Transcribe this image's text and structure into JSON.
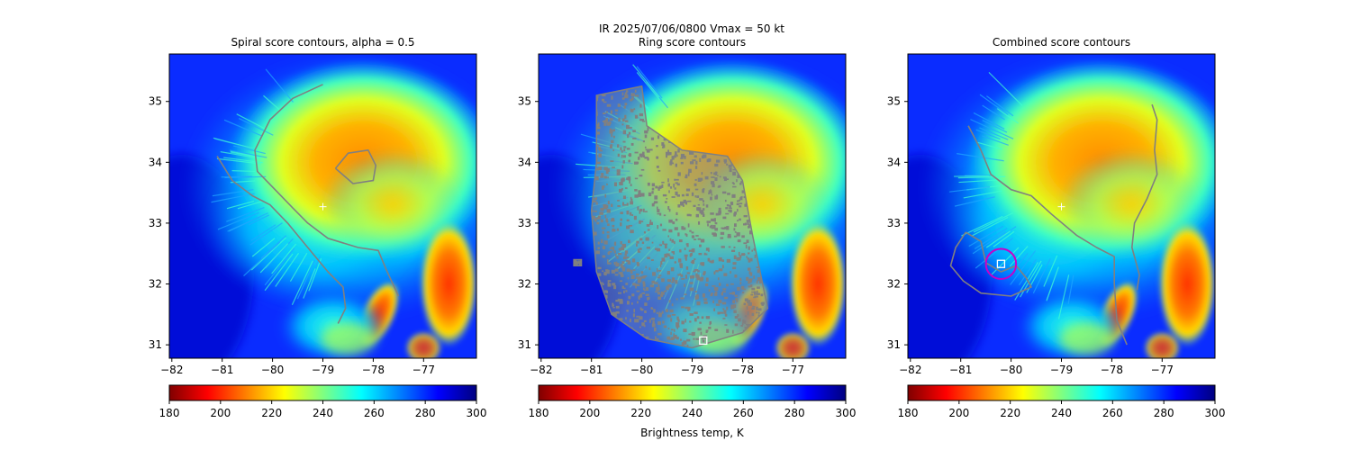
{
  "figure": {
    "suptitle_line1": "IR  2025/07/06/0800    Vmax = 50 kt"
  },
  "colorbar": {
    "label": "Brightness temp, K",
    "ticks": [
      180,
      200,
      220,
      240,
      260,
      280,
      300
    ],
    "range": [
      180,
      300
    ],
    "colormap": "jet_reversed",
    "stops": [
      "#800000",
      "#ff0000",
      "#ff8000",
      "#ffff00",
      "#80ff80",
      "#00ffff",
      "#0080ff",
      "#0000ff",
      "#000080"
    ]
  },
  "chart_data": [
    {
      "type": "heatmap",
      "title": "Spiral score contours, alpha =  0.5",
      "xlabel": "",
      "ylabel": "",
      "xlim": [
        -82.05,
        -75.95
      ],
      "ylim": [
        30.78,
        35.78
      ],
      "xticks": [
        -82,
        -81,
        -80,
        -79,
        -78,
        -77
      ],
      "yticks": [
        31,
        32,
        33,
        34,
        35
      ],
      "contour_color": "#808080",
      "center_marker": {
        "x": -79.0,
        "y": 33.27,
        "symbol": "plus"
      },
      "contours": [
        [
          [
            -79.0,
            35.28
          ],
          [
            -79.6,
            35.05
          ],
          [
            -80.05,
            34.7
          ],
          [
            -80.35,
            34.2
          ],
          [
            -80.3,
            33.85
          ],
          [
            -79.95,
            33.55
          ],
          [
            -79.6,
            33.25
          ],
          [
            -79.3,
            33.0
          ],
          [
            -78.9,
            32.75
          ],
          [
            -78.3,
            32.6
          ],
          [
            -77.9,
            32.55
          ],
          [
            -77.75,
            32.25
          ],
          [
            -77.5,
            31.8
          ]
        ],
        [
          [
            -81.1,
            34.1
          ],
          [
            -80.8,
            33.7
          ],
          [
            -80.4,
            33.45
          ],
          [
            -80.05,
            33.3
          ],
          [
            -79.7,
            33.0
          ],
          [
            -79.35,
            32.65
          ],
          [
            -78.9,
            32.2
          ],
          [
            -78.6,
            31.95
          ],
          [
            -78.55,
            31.6
          ],
          [
            -78.7,
            31.35
          ]
        ],
        [
          [
            -78.75,
            33.9
          ],
          [
            -78.5,
            34.15
          ],
          [
            -78.1,
            34.2
          ],
          [
            -77.95,
            33.95
          ],
          [
            -78.0,
            33.7
          ],
          [
            -78.4,
            33.65
          ],
          [
            -78.75,
            33.9
          ]
        ]
      ]
    },
    {
      "type": "heatmap",
      "title": "Ring score contours",
      "xlabel": "",
      "ylabel": "",
      "xlim": [
        -82.05,
        -75.95
      ],
      "ylim": [
        30.78,
        35.78
      ],
      "xticks": [
        -82,
        -81,
        -80,
        -79,
        -78,
        -77
      ],
      "yticks": [
        31,
        32,
        33,
        34,
        35
      ],
      "contour_color": "#808080",
      "marker_square": {
        "x": -78.78,
        "y": 31.07
      },
      "speckle_regions": [
        [
          [
            -80.9,
            35.1
          ],
          [
            -80.0,
            35.25
          ],
          [
            -79.9,
            34.6
          ],
          [
            -79.2,
            34.2
          ],
          [
            -78.3,
            34.1
          ],
          [
            -78.0,
            33.7
          ],
          [
            -77.8,
            32.8
          ],
          [
            -77.5,
            31.6
          ],
          [
            -78.0,
            31.2
          ],
          [
            -79.0,
            30.95
          ],
          [
            -79.9,
            31.1
          ],
          [
            -80.6,
            31.5
          ],
          [
            -80.9,
            32.2
          ],
          [
            -81.0,
            33.2
          ],
          [
            -80.9,
            34.0
          ]
        ],
        [
          [
            -81.35,
            32.4
          ],
          [
            -81.2,
            32.4
          ],
          [
            -81.2,
            32.3
          ],
          [
            -81.35,
            32.3
          ]
        ]
      ]
    },
    {
      "type": "heatmap",
      "title": "Combined score contours",
      "xlabel": "",
      "ylabel": "",
      "xlim": [
        -82.05,
        -75.95
      ],
      "ylim": [
        30.78,
        35.78
      ],
      "xticks": [
        -82,
        -81,
        -80,
        -79,
        -78,
        -77
      ],
      "yticks": [
        31,
        32,
        33,
        34,
        35
      ],
      "contour_color": "#808080",
      "center_marker": {
        "x": -79.0,
        "y": 33.27,
        "symbol": "plus"
      },
      "ring": {
        "x": -80.2,
        "y": 32.33,
        "radius_deg": 0.3,
        "color": "#c800c8"
      },
      "marker_square": {
        "x": -80.2,
        "y": 32.33
      },
      "contours": [
        [
          [
            -80.85,
            34.6
          ],
          [
            -80.6,
            34.2
          ],
          [
            -80.4,
            33.8
          ],
          [
            -80.0,
            33.55
          ],
          [
            -79.6,
            33.45
          ],
          [
            -79.2,
            33.15
          ],
          [
            -78.7,
            32.8
          ],
          [
            -78.3,
            32.6
          ],
          [
            -77.95,
            32.45
          ],
          [
            -77.95,
            32.0
          ],
          [
            -77.9,
            31.4
          ],
          [
            -77.7,
            31.0
          ]
        ],
        [
          [
            -77.2,
            34.95
          ],
          [
            -77.1,
            34.7
          ],
          [
            -77.15,
            34.2
          ],
          [
            -77.1,
            33.8
          ],
          [
            -77.3,
            33.4
          ],
          [
            -77.55,
            33.0
          ],
          [
            -77.6,
            32.6
          ],
          [
            -77.45,
            32.15
          ],
          [
            -77.5,
            31.9
          ]
        ],
        [
          [
            -80.9,
            32.85
          ],
          [
            -80.6,
            32.7
          ],
          [
            -80.5,
            32.35
          ],
          [
            -80.2,
            32.2
          ],
          [
            -79.9,
            32.3
          ],
          [
            -79.7,
            32.1
          ],
          [
            -79.6,
            31.95
          ],
          [
            -80.0,
            31.8
          ],
          [
            -80.6,
            31.85
          ],
          [
            -80.95,
            32.05
          ],
          [
            -81.2,
            32.3
          ],
          [
            -81.1,
            32.6
          ],
          [
            -80.9,
            32.85
          ]
        ]
      ]
    }
  ]
}
